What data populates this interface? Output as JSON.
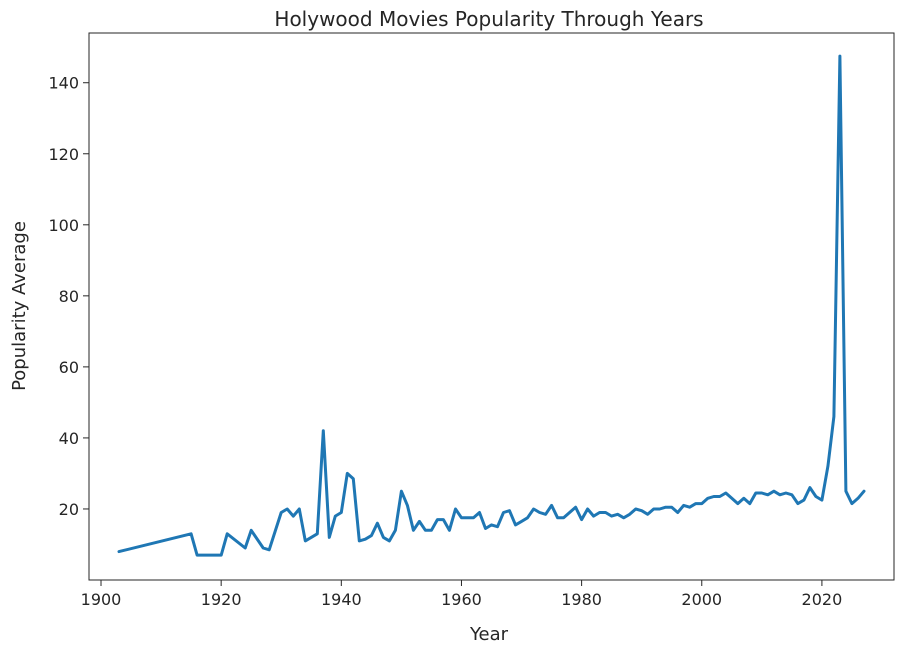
{
  "chart_data": {
    "type": "line",
    "title": "Holywood Movies Popularity Through Years",
    "xlabel": "Year",
    "ylabel": "Popularity Average",
    "xlim": [
      1898,
      2032
    ],
    "ylim": [
      0,
      154
    ],
    "xticks": [
      1900,
      1920,
      1940,
      1960,
      1980,
      2000,
      2020
    ],
    "yticks": [
      20,
      40,
      60,
      80,
      100,
      120,
      140
    ],
    "grid": false,
    "line_color": "#1f77b4",
    "series": [
      {
        "x": [
          1903,
          1915,
          1916,
          1920,
          1921,
          1924,
          1925,
          1927,
          1928,
          1930,
          1931,
          1932,
          1933,
          1934,
          1936,
          1937,
          1938,
          1939,
          1940,
          1941,
          1942,
          1943,
          1944,
          1945,
          1946,
          1947,
          1948,
          1949,
          1950,
          1951,
          1952,
          1953,
          1954,
          1955,
          1956,
          1957,
          1958,
          1959,
          1960,
          1961,
          1962,
          1963,
          1964,
          1965,
          1966,
          1967,
          1968,
          1969,
          1970,
          1971,
          1972,
          1973,
          1974,
          1975,
          1976,
          1977,
          1978,
          1979,
          1980,
          1981,
          1982,
          1983,
          1984,
          1985,
          1986,
          1987,
          1988,
          1989,
          1990,
          1991,
          1992,
          1993,
          1994,
          1995,
          1996,
          1997,
          1998,
          1999,
          2000,
          2001,
          2002,
          2003,
          2004,
          2005,
          2006,
          2007,
          2008,
          2009,
          2010,
          2011,
          2012,
          2013,
          2014,
          2015,
          2016,
          2017,
          2018,
          2019,
          2020,
          2021,
          2022,
          2023,
          2024,
          2025,
          2026,
          2027
        ],
        "y": [
          8,
          13,
          7,
          7,
          13,
          9,
          14,
          9,
          8.5,
          19,
          20,
          18,
          20,
          11,
          13,
          42,
          12,
          18,
          19,
          30,
          28.5,
          11,
          11.5,
          12.5,
          16,
          12,
          11,
          14,
          25,
          21,
          14,
          16.5,
          14,
          14,
          17,
          17,
          14,
          20,
          17.5,
          17.5,
          17.5,
          19,
          14.5,
          15.5,
          15,
          19,
          19.5,
          15.5,
          16.5,
          17.5,
          20,
          19,
          18.5,
          21,
          17.5,
          17.5,
          19,
          20.5,
          17,
          20,
          18,
          19,
          19,
          18,
          18.5,
          17.5,
          18.5,
          20,
          19.5,
          18.5,
          20,
          20,
          20.5,
          20.5,
          19,
          21,
          20.5,
          21.5,
          21.5,
          23,
          23.5,
          23.5,
          24.5,
          23,
          21.5,
          23,
          21.5,
          24.5,
          24.5,
          24,
          25,
          24,
          24.5,
          24,
          21.5,
          22.5,
          26,
          23.5,
          22.5,
          32,
          46,
          147.5,
          25,
          21.5,
          23,
          25
        ]
      }
    ]
  }
}
